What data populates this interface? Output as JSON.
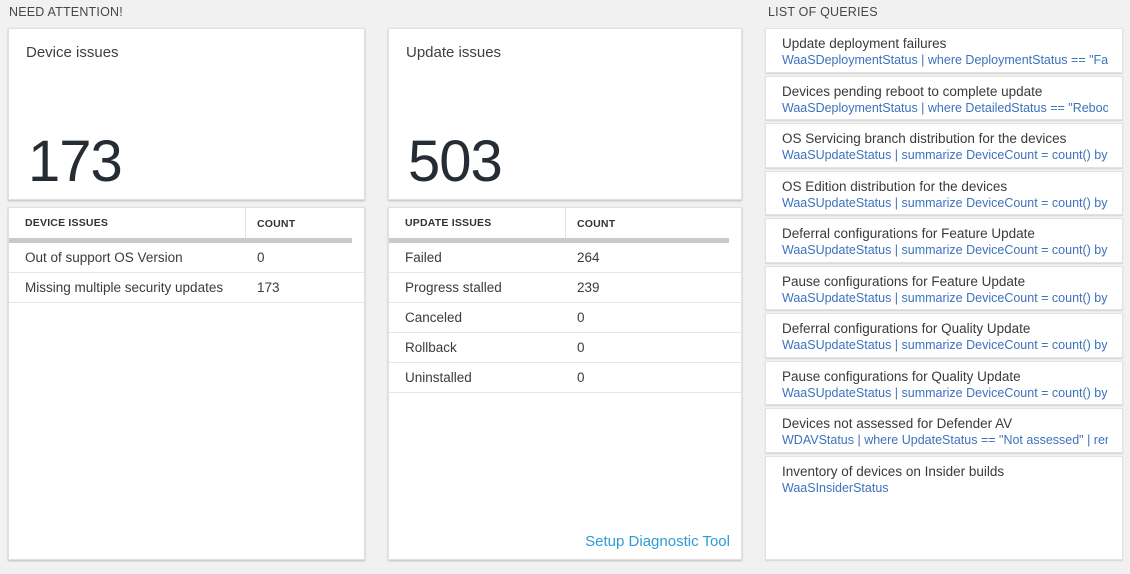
{
  "colors": {
    "page_background": "#f1f1f1",
    "card_background": "#ffffff",
    "big_number_text": "#262c33",
    "query_code_blue": "#3c72bd",
    "link_blue": "#2e9bd8",
    "header_bar_gray": "#c9c9c9"
  },
  "sections": {
    "need_attention": "NEED ATTENTION!",
    "list_of_queries": "LIST OF QUERIES"
  },
  "device_card": {
    "title": "Device issues",
    "big_number": "173"
  },
  "device_table": {
    "headers": [
      "DEVICE ISSUES",
      "COUNT"
    ],
    "rows": [
      {
        "label": "Out of support OS Version",
        "count": "0"
      },
      {
        "label": "Missing multiple security updates",
        "count": "173"
      }
    ]
  },
  "update_card": {
    "title": "Update issues",
    "big_number": "503"
  },
  "update_table": {
    "headers": [
      "UPDATE ISSUES",
      "COUNT"
    ],
    "rows": [
      {
        "label": "Failed",
        "count": "264"
      },
      {
        "label": "Progress stalled",
        "count": "239"
      },
      {
        "label": "Canceled",
        "count": "0"
      },
      {
        "label": "Rollback",
        "count": "0"
      },
      {
        "label": "Uninstalled",
        "count": "0"
      }
    ],
    "footer_link": "Setup Diagnostic Tool"
  },
  "queries": {
    "items": [
      {
        "title": "Update deployment failures",
        "query": "WaaSDeploymentStatus | where DeploymentStatus == \"Failed\" |..."
      },
      {
        "title": "Devices pending reboot to complete update",
        "query": "WaaSDeploymentStatus | where DetailedStatus == \"Reboot pend..."
      },
      {
        "title": "OS Servicing branch distribution for the devices",
        "query": "WaaSUpdateStatus | summarize DeviceCount = count() by OSSer..."
      },
      {
        "title": "OS Edition distribution for the devices",
        "query": "WaaSUpdateStatus | summarize DeviceCount = count() by OSEdit..."
      },
      {
        "title": "Deferral configurations for Feature Update",
        "query": "WaaSUpdateStatus | summarize DeviceCount = count() by Featur..."
      },
      {
        "title": "Pause configurations for Feature Update",
        "query": "WaaSUpdateStatus | summarize DeviceCount = count() by Featur..."
      },
      {
        "title": "Deferral configurations for Quality Update",
        "query": "WaaSUpdateStatus | summarize DeviceCount = count() by Qualit..."
      },
      {
        "title": "Pause configurations for Quality Update",
        "query": "WaaSUpdateStatus | summarize DeviceCount = count() by Qualit..."
      },
      {
        "title": "Devices not assessed for Defender AV",
        "query": "WDAVStatus | where UpdateStatus == \"Not assessed\" | render ta..."
      },
      {
        "title": "Inventory of devices on Insider builds",
        "query": "WaaSInsiderStatus"
      }
    ]
  }
}
